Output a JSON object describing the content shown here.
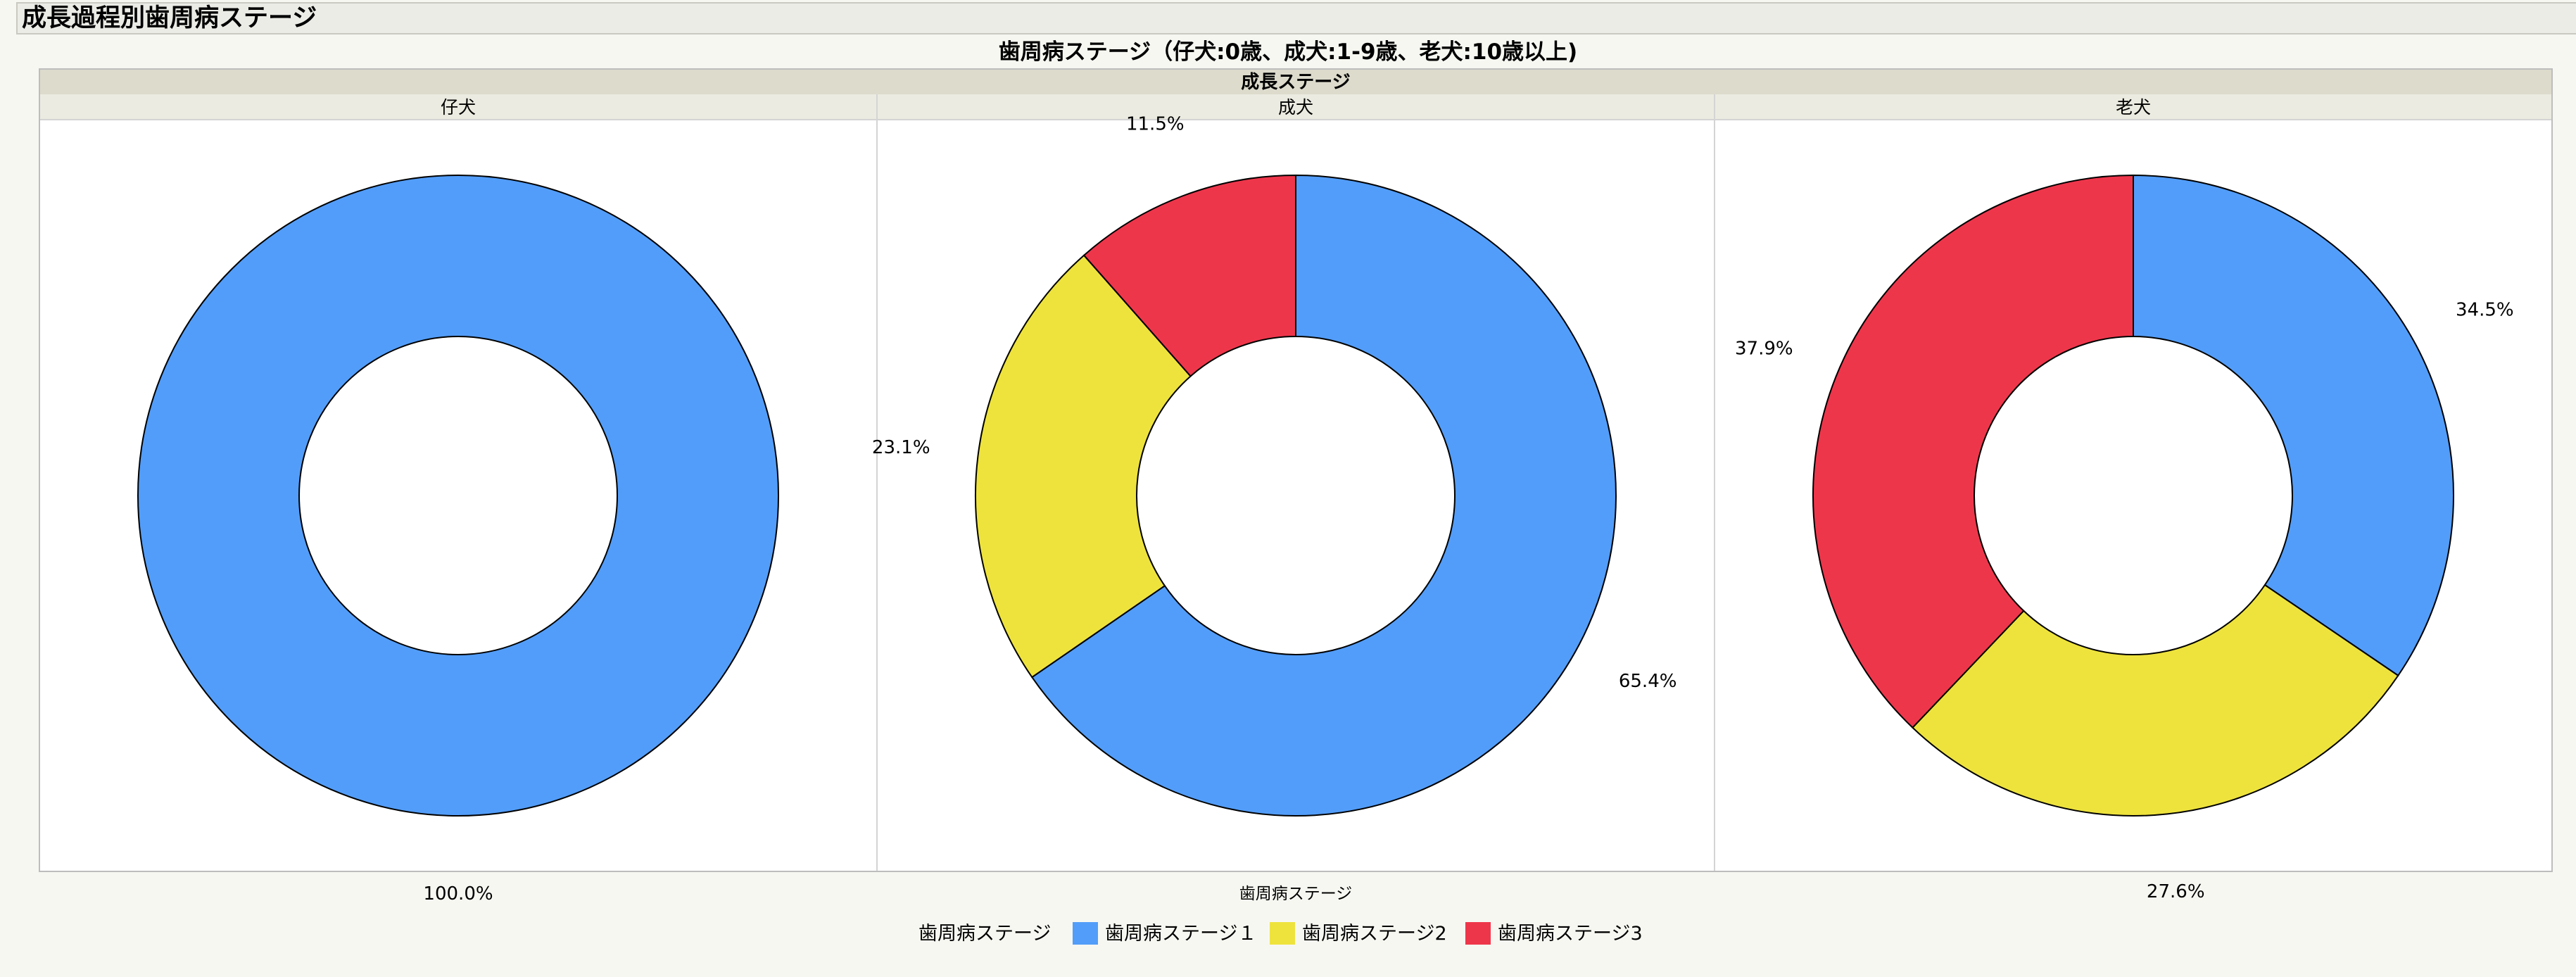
{
  "window": {
    "title": "成長過程別歯周病ステージ"
  },
  "chart_data": {
    "type": "pie",
    "style": "donut",
    "title": "歯周病ステージ（仔犬:0歳、成犬:1-9歳、老犬:10歳以上)",
    "group_header": "成長ステージ",
    "xlabel": "歯周病ステージ",
    "legend": {
      "title": "歯周病ステージ",
      "placement": "bottom-center",
      "items": [
        "歯周病ステージ１",
        "歯周病ステージ2",
        "歯周病ステージ3"
      ]
    },
    "series_colors": [
      "#529df9",
      "#eee33d",
      "#ee364b"
    ],
    "panels": [
      {
        "category": "仔犬",
        "values": [
          100.0,
          0,
          0
        ],
        "labels": [
          "100.0%",
          "",
          ""
        ]
      },
      {
        "category": "成犬",
        "values": [
          65.4,
          23.1,
          11.5
        ],
        "labels": [
          "65.4%",
          "23.1%",
          "11.5%"
        ]
      },
      {
        "category": "老犬",
        "values": [
          34.5,
          27.6,
          37.9
        ],
        "labels": [
          "34.5%",
          "27.6%",
          "37.9%"
        ]
      }
    ]
  }
}
